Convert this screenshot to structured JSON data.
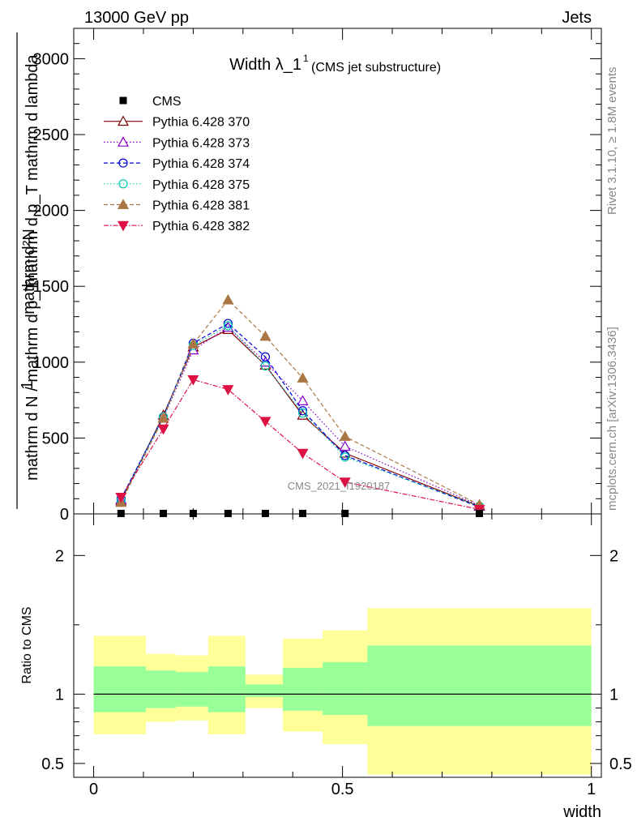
{
  "header": {
    "left": "13000 GeV pp",
    "right": "Jets"
  },
  "side_labels": {
    "rivet": "Rivet 3.1.10, ≥ 1.8M events",
    "mcplots": "mcplots.cern.ch [arXiv:1306.3436]"
  },
  "watermark": "CMS_2021_I1920187",
  "chart_data": [
    {
      "type": "line",
      "title_main": "Width λ_1",
      "title_sup": "1",
      "title_sub": "(CMS jet substructure)",
      "ylabel_top": "mathrm d²N",
      "ylabel_top_den": "mathrm d p_T mathrm d lambda",
      "ylabel_one": "1",
      "ylabel_bottom": "mathrm d N / mathrm d p_T",
      "xlim": [
        -0.04,
        1.02
      ],
      "ylim": [
        0,
        3200
      ],
      "y_ticks": [
        0,
        500,
        1000,
        1500,
        2000,
        2500,
        3000
      ],
      "y_tick_labels": [
        "0",
        "500",
        "1000",
        "1500",
        "2000",
        "2500",
        "3000"
      ],
      "legend_position": "top-left",
      "cms": {
        "name": "CMS",
        "x": [
          0.055,
          0.14,
          0.2,
          0.27,
          0.345,
          0.42,
          0.505,
          0.775
        ],
        "y": [
          3,
          3,
          3,
          3,
          3,
          3,
          3,
          3
        ]
      },
      "series": [
        {
          "name": "Pythia 6.428 370",
          "color": "#800000",
          "dash": "",
          "marker": "triangle-open",
          "x": [
            0.055,
            0.14,
            0.2,
            0.27,
            0.345,
            0.42,
            0.505,
            0.775
          ],
          "y": [
            85,
            650,
            1100,
            1215,
            980,
            650,
            400,
            50
          ]
        },
        {
          "name": "Pythia 6.428 373",
          "color": "#8800cc",
          "dash": "1.5,2.5",
          "marker": "triangle-open",
          "x": [
            0.055,
            0.14,
            0.2,
            0.27,
            0.345,
            0.42,
            0.505,
            0.775
          ],
          "y": [
            95,
            630,
            1080,
            1230,
            1000,
            745,
            445,
            55
          ]
        },
        {
          "name": "Pythia 6.428 374",
          "color": "#0000dd",
          "dash": "5,3",
          "marker": "circle-open",
          "x": [
            0.055,
            0.14,
            0.2,
            0.27,
            0.345,
            0.42,
            0.505,
            0.775
          ],
          "y": [
            100,
            640,
            1125,
            1255,
            1035,
            680,
            385,
            45
          ]
        },
        {
          "name": "Pythia 6.428 375",
          "color": "#00ccaa",
          "dash": "1.5,2.5",
          "marker": "circle-open",
          "x": [
            0.055,
            0.14,
            0.2,
            0.27,
            0.345,
            0.42,
            0.505,
            0.775
          ],
          "y": [
            90,
            640,
            1110,
            1240,
            975,
            665,
            375,
            50
          ]
        },
        {
          "name": "Pythia 6.428 381",
          "color": "#aa7744",
          "dash": "5,3",
          "marker": "triangle-filled",
          "x": [
            0.055,
            0.14,
            0.2,
            0.27,
            0.345,
            0.42,
            0.505,
            0.775
          ],
          "y": [
            75,
            630,
            1120,
            1410,
            1170,
            895,
            510,
            60
          ]
        },
        {
          "name": "Pythia 6.428 382",
          "color": "#dd1144",
          "dash": "6,2,1.5,2",
          "marker": "triangle-down-filled",
          "x": [
            0.055,
            0.14,
            0.2,
            0.27,
            0.345,
            0.42,
            0.505,
            0.775
          ],
          "y": [
            110,
            560,
            885,
            820,
            610,
            400,
            210,
            30
          ]
        }
      ]
    },
    {
      "type": "area",
      "ylabel": "Ratio to CMS",
      "xlabel": "width",
      "xlim": [
        -0.04,
        1.02
      ],
      "ylim": [
        0.4,
        2.3
      ],
      "y_ticks": [
        0.5,
        1,
        2
      ],
      "y_tick_labels": [
        "0.5",
        "1",
        "2"
      ],
      "x_ticks": [
        0,
        0.5,
        1
      ],
      "x_tick_labels": [
        "0",
        "0.5",
        "1"
      ],
      "bands": [
        {
          "x0": 0.0,
          "x1": 0.105,
          "inner": [
            0.87,
            1.2
          ],
          "outer": [
            0.71,
            1.42
          ]
        },
        {
          "x0": 0.105,
          "x1": 0.165,
          "inner": [
            0.9,
            1.17
          ],
          "outer": [
            0.8,
            1.29
          ]
        },
        {
          "x0": 0.165,
          "x1": 0.23,
          "inner": [
            0.91,
            1.16
          ],
          "outer": [
            0.81,
            1.28
          ]
        },
        {
          "x0": 0.23,
          "x1": 0.305,
          "inner": [
            0.87,
            1.2
          ],
          "outer": [
            0.71,
            1.42
          ]
        },
        {
          "x0": 0.305,
          "x1": 0.38,
          "inner": [
            0.98,
            1.07
          ],
          "outer": [
            0.9,
            1.14
          ]
        },
        {
          "x0": 0.38,
          "x1": 0.46,
          "inner": [
            0.88,
            1.19
          ],
          "outer": [
            0.73,
            1.4
          ]
        },
        {
          "x0": 0.46,
          "x1": 0.55,
          "inner": [
            0.85,
            1.23
          ],
          "outer": [
            0.64,
            1.46
          ]
        },
        {
          "x0": 0.55,
          "x1": 1.0,
          "inner": [
            0.77,
            1.35
          ],
          "outer": [
            0.42,
            1.62
          ]
        }
      ],
      "colors": {
        "inner": "#99ff99",
        "outer": "#ffff99"
      }
    }
  ]
}
